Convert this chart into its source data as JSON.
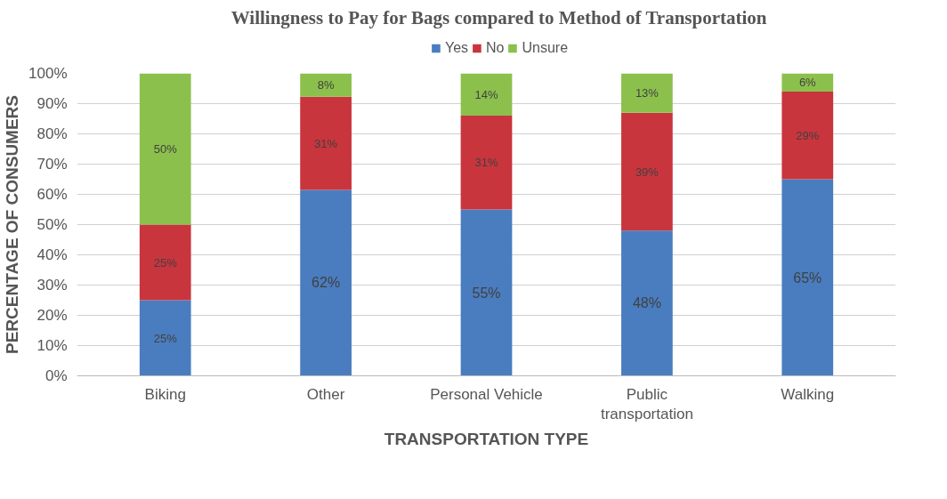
{
  "chart_data": {
    "type": "bar",
    "stacked": true,
    "title": "Willingness to Pay for Bags compared to Method of Transportation",
    "xlabel": "TRANSPORTATION TYPE",
    "ylabel": "PERCENTAGE OF CONSUMERS",
    "categories": [
      "Biking",
      "Other",
      "Personal Vehicle",
      "Public transportation",
      "Walking"
    ],
    "series": [
      {
        "name": "Yes",
        "color": "#4a7dbf",
        "values": [
          25,
          61.5,
          55,
          48,
          65
        ],
        "value_labels": [
          "25%",
          "62%",
          "55%",
          "48%",
          "65%"
        ]
      },
      {
        "name": "No",
        "color": "#c9353d",
        "values": [
          25,
          30.8,
          31,
          39,
          29
        ],
        "value_labels": [
          "25%",
          "31%",
          "31%",
          "39%",
          "29%"
        ]
      },
      {
        "name": "Unsure",
        "color": "#8cc04c",
        "values": [
          50,
          7.7,
          14,
          13,
          6
        ],
        "value_labels": [
          "50%",
          "8%",
          "14%",
          "13%",
          "6%"
        ]
      }
    ],
    "ylim": [
      0,
      100
    ],
    "yticks": [
      {
        "value": 0,
        "label": "0%"
      },
      {
        "value": 10,
        "label": "10%"
      },
      {
        "value": 20,
        "label": "20%"
      },
      {
        "value": 30,
        "label": "30%"
      },
      {
        "value": 40,
        "label": "40%"
      },
      {
        "value": 50,
        "label": "50%"
      },
      {
        "value": 60,
        "label": "60%"
      },
      {
        "value": 70,
        "label": "70%"
      },
      {
        "value": 80,
        "label": "80%"
      },
      {
        "value": 90,
        "label": "90%"
      },
      {
        "value": 100,
        "label": "100%"
      }
    ],
    "grid": "y",
    "legend": "top"
  }
}
